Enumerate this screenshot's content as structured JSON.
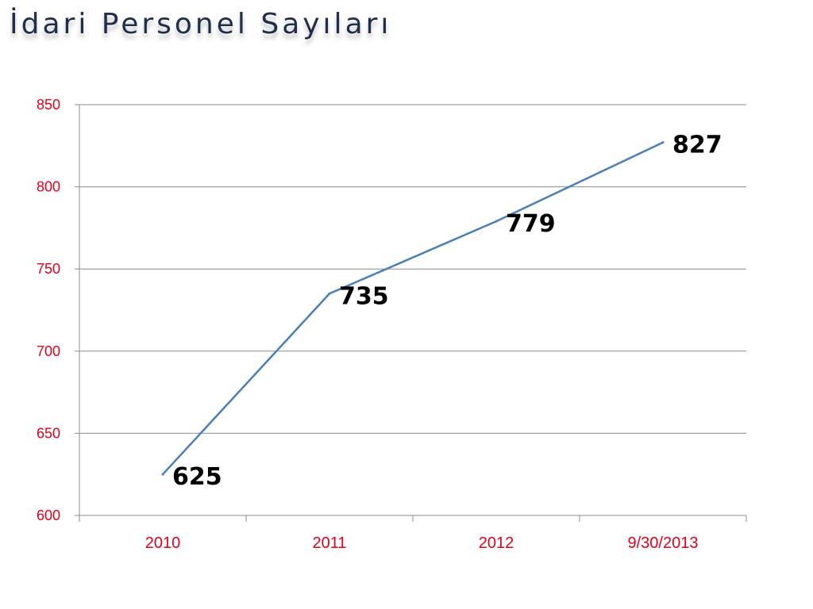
{
  "slide": {
    "title": "İdari Personel Sayıları"
  },
  "chart_data": {
    "type": "line",
    "title": "",
    "xlabel": "",
    "ylabel": "",
    "categories": [
      "2010",
      "2011",
      "2012",
      "9/30/2013"
    ],
    "series": [
      {
        "values": [
          625,
          735,
          779,
          827
        ]
      }
    ],
    "ylim": [
      600,
      850
    ],
    "yticks": [
      600,
      650,
      700,
      750,
      800,
      850
    ],
    "grid": true,
    "legend": "none",
    "data_labels": true,
    "colors": {
      "line": "#4a7ebb",
      "tick_text": "#e3001b",
      "grid": "#8c8c8c",
      "axis": "#8c8c8c",
      "data_label": "#000000",
      "title": "#1f2f4a"
    }
  }
}
